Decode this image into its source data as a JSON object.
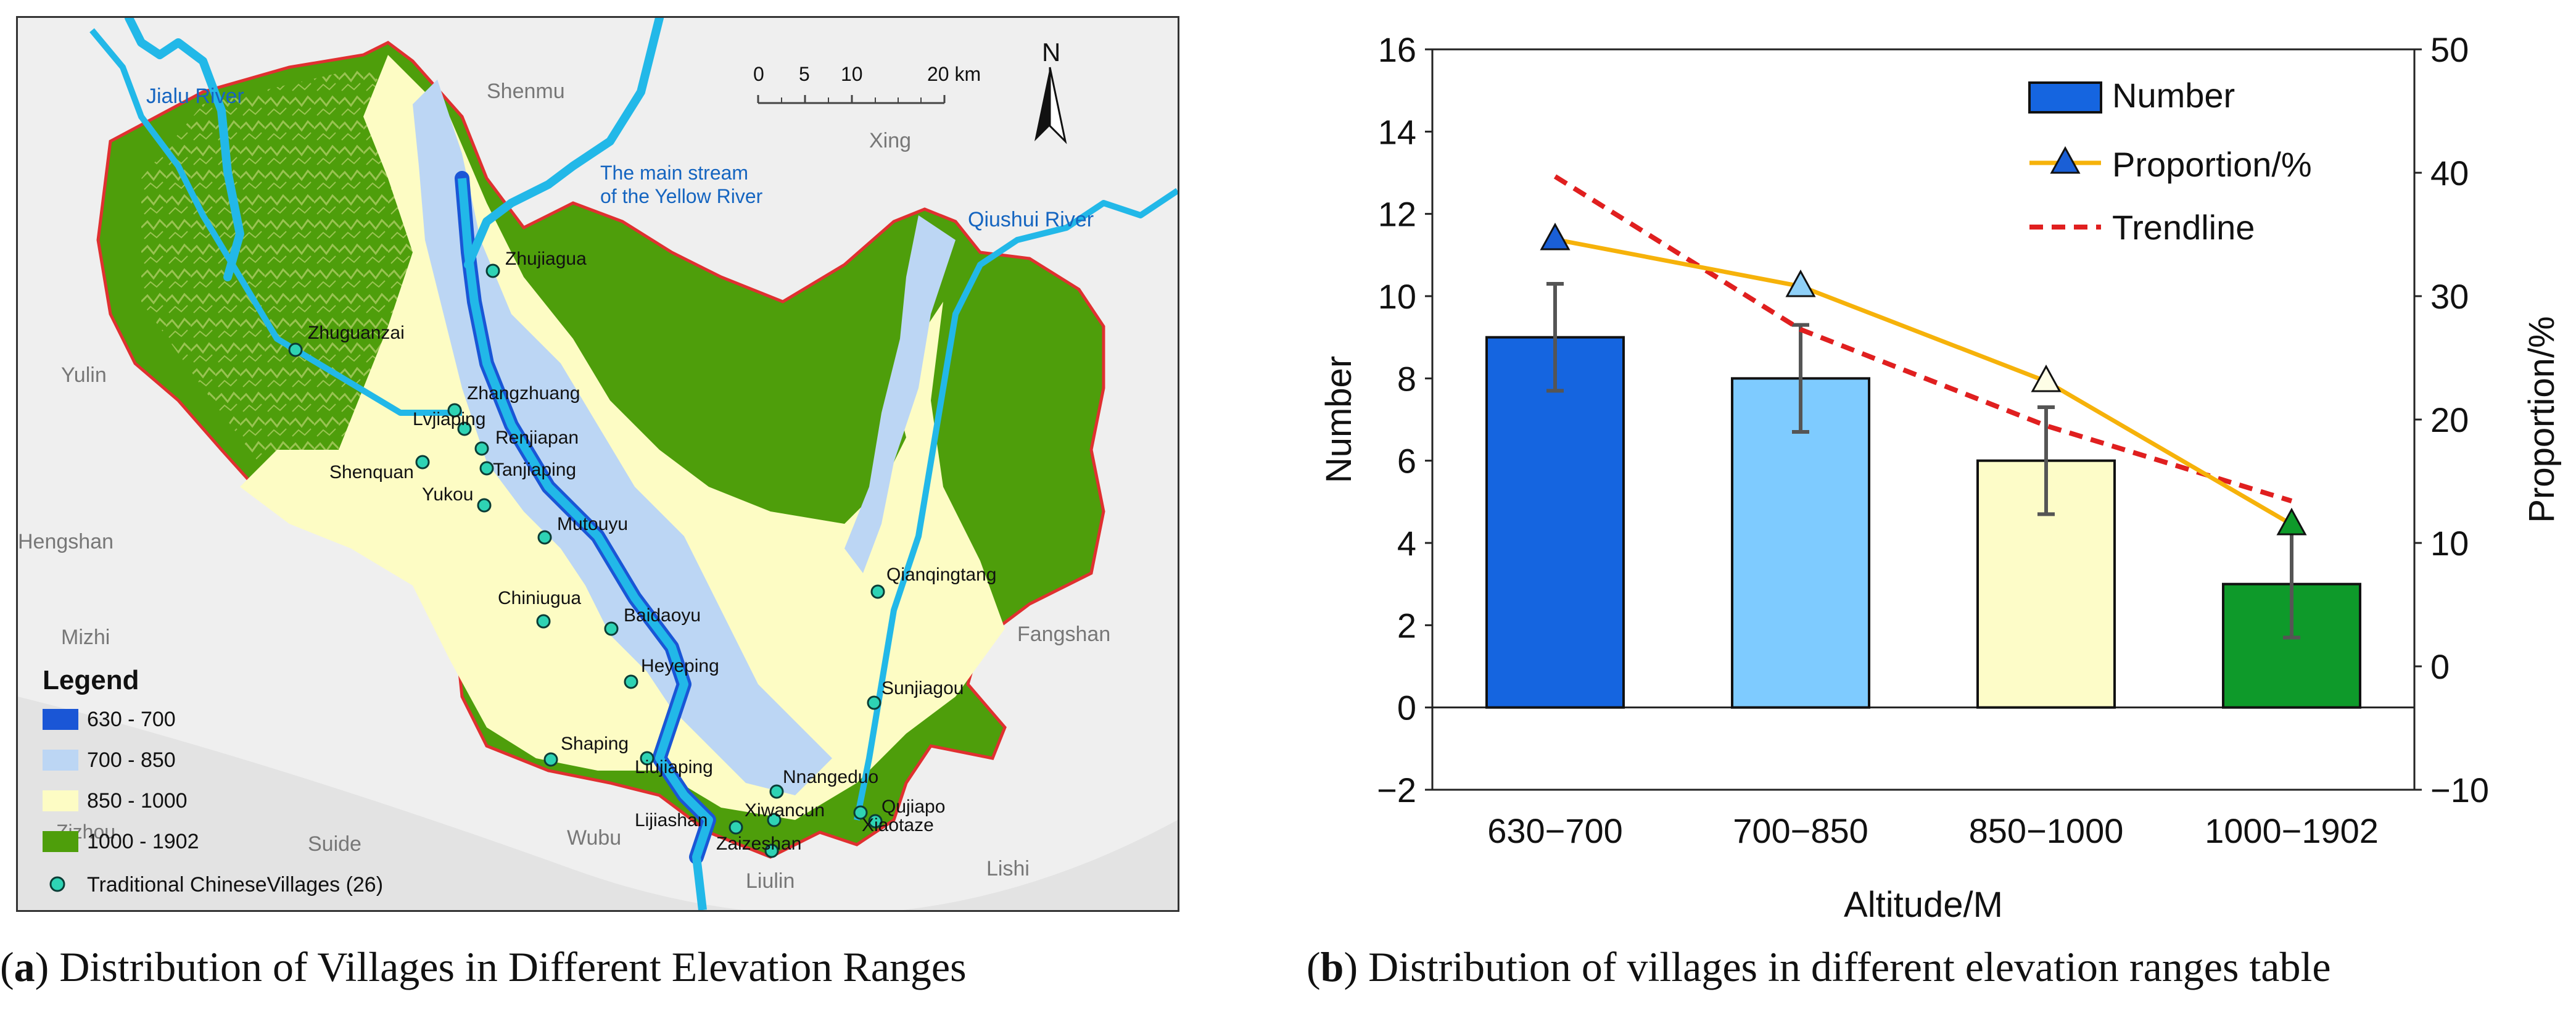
{
  "panel_a": {
    "caption_letter": "a",
    "caption_text": " Distribution of Villages in Different Elevation Ranges",
    "labels": {
      "north": "N",
      "scale": [
        "0",
        "5",
        "10",
        "20 km"
      ],
      "rivers": {
        "jialu": "Jialu River",
        "yellow_line1": "The main stream",
        "yellow_line2": "of the Yellow River",
        "qiushui": "Qiushui River"
      },
      "regions": {
        "shenmu": "Shenmu",
        "xing": "Xing",
        "yulin": "Yulin",
        "hengshan": "Hengshan",
        "mizhi": "Mizhi",
        "fangshan": "Fangshan",
        "suide": "Suide",
        "wubu": "Wubu",
        "liulin": "Liulin",
        "lishi": "Lishi",
        "zizhou": "Zizhou"
      }
    },
    "villages": [
      "Zhujiagua",
      "Zhuguanzai",
      "Zhangzhuang",
      "Lvjiaping",
      "Renjiapan",
      "Tanjiaping",
      "Shenquan",
      "Yukou",
      "Mutouyu",
      "Qianqingtang",
      "Chiniugua",
      "Baidaoyu",
      "Heyeping",
      "Sunjiagou",
      "Shaping",
      "Liujiaping",
      "Nnangeduo",
      "Qujiapo",
      "Xiwancun",
      "Xiaotaze",
      "Lijiashan",
      "Zaizeshan"
    ],
    "legend": {
      "title": "Legend",
      "items": [
        "630 - 700",
        "700 - 850",
        "850 - 1000",
        "1000 - 1902"
      ],
      "villages_label": "Traditional ChineseVillages (26)"
    },
    "colors": {
      "c630": "#1a56d6",
      "c700": "#bcd6f4",
      "c850": "#fdfcc4",
      "c1000": "#4e9e0b",
      "river": "#22b8e8",
      "boundary": "#e03030",
      "village": "#2ed3b4"
    }
  },
  "chart_data": {
    "type": "bar",
    "title": "",
    "categories": [
      "630−700",
      "700−850",
      "850−1000",
      "1000−1902"
    ],
    "series": [
      {
        "name": "Number",
        "axis": "left",
        "values": [
          9,
          8,
          6,
          3
        ],
        "error": [
          1.3,
          1.3,
          1.3,
          1.3
        ],
        "colors": [
          "#1565e0",
          "#7ecbff",
          "#fdfcc8",
          "#0e9a2a"
        ]
      },
      {
        "name": "Proportion/%",
        "axis": "right",
        "type": "line",
        "values": [
          34.6,
          30.8,
          23.1,
          11.5
        ],
        "color": "#f6b20a",
        "marker_colors": [
          "#1a5fd6",
          "#8fd0f8",
          "#fefee6",
          "#0e9a2a"
        ]
      },
      {
        "name": "Trendline",
        "axis": "right",
        "type": "line",
        "style": "dashed",
        "values": [
          39.7,
          27.3,
          19.5,
          13.4
        ],
        "color": "#e01f1f"
      }
    ],
    "xlabel": "Altitude/M",
    "ylabel": "Number",
    "y2label": "Proportion/%",
    "ylim": [
      -2,
      16
    ],
    "y2lim": [
      -10,
      50
    ],
    "yticks": [
      "−2",
      "0",
      "2",
      "4",
      "6",
      "8",
      "10",
      "12",
      "14",
      "16"
    ],
    "y2ticks": [
      "−10",
      "0",
      "10",
      "20",
      "30",
      "40",
      "50"
    ],
    "legend": [
      "Number",
      "Proportion/%",
      "Trendline"
    ],
    "legend_position": "top-right",
    "grid": false
  },
  "panel_b": {
    "caption_letter": "b",
    "caption_text": " Distribution of villages in different elevation ranges table"
  }
}
